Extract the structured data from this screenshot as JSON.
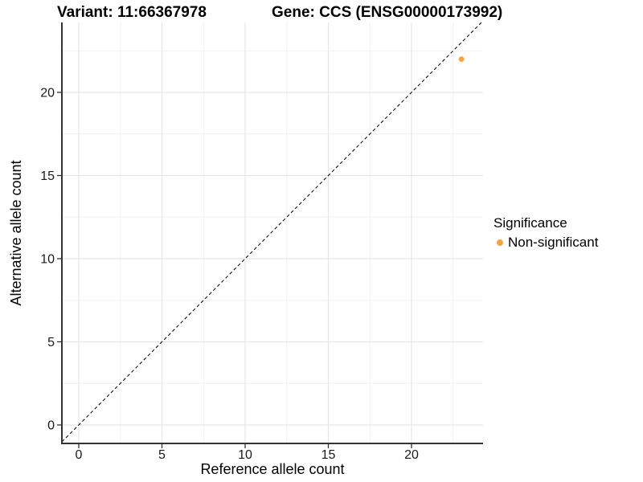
{
  "chart_data": {
    "type": "scatter",
    "titles": {
      "left": "Variant: 11:66367978",
      "right": "Gene: CCS (ENSG00000173992)"
    },
    "xlabel": "Reference allele count",
    "ylabel": "Alternative allele count",
    "x_ticks": [
      0,
      5,
      10,
      15,
      20
    ],
    "y_ticks": [
      0,
      5,
      10,
      15,
      20
    ],
    "x_minor_ticks": [
      2.5,
      7.5,
      12.5,
      17.5,
      22.5
    ],
    "y_minor_ticks": [
      2.5,
      7.5,
      12.5,
      17.5,
      22.5
    ],
    "xlim": [
      -1.0,
      24.3
    ],
    "ylim": [
      -1.1,
      24.2
    ],
    "grid": "major+minor",
    "reference_line": {
      "equation": "y = x",
      "style": "dashed",
      "color": "#000000"
    },
    "series": [
      {
        "name": "Non-significant",
        "color": "#F9A242",
        "points": [
          {
            "x": 23,
            "y": 22
          }
        ]
      }
    ],
    "legend": {
      "title": "Significance",
      "position": "right",
      "items": [
        {
          "label": "Non-significant",
          "color": "#F9A242"
        }
      ]
    },
    "colors": {
      "point": "#F9A242",
      "grid_major": "#E6E6E6",
      "grid_minor": "#F0F0F0",
      "axis_line": "#333333",
      "tick": "#333333",
      "text": "#000000",
      "background": "#FFFFFF"
    }
  }
}
